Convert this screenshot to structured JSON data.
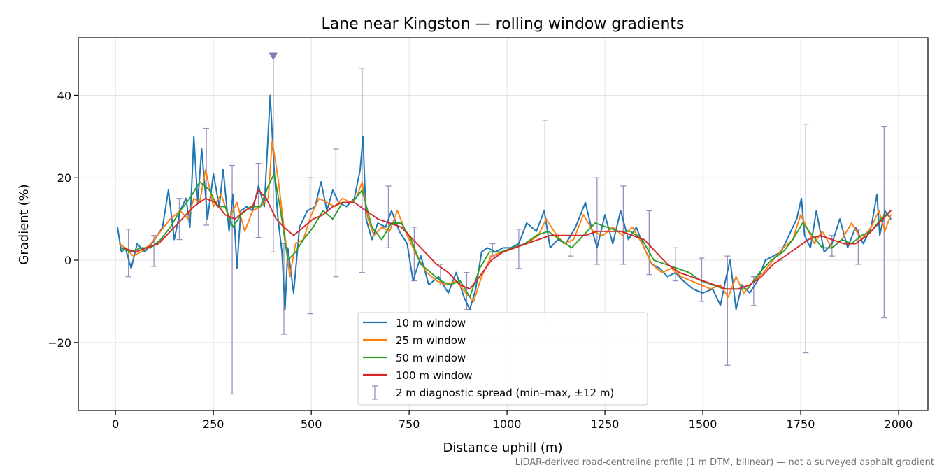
{
  "chart_data": {
    "type": "line",
    "title": "Lane near Kingston — rolling window gradients",
    "xlabel": "Distance uphill (m)",
    "ylabel": "Gradient (%)",
    "footnote": "LiDAR-derived road-centreline profile (1 m DTM, bilinear) — not a surveyed asphalt gradient",
    "xlim": [
      -95,
      2075
    ],
    "ylim": [
      -36.5,
      54
    ],
    "xticks": [
      0,
      250,
      500,
      750,
      1000,
      1250,
      1500,
      1750,
      2000
    ],
    "yticks": [
      -20,
      0,
      20,
      40
    ],
    "ytick_labels": [
      "−20",
      "0",
      "20",
      "40"
    ],
    "grid": true,
    "legend_position": "lower center",
    "series": [
      {
        "name": "10 m window",
        "color": "#1f77b4",
        "x": [
          5,
          15,
          25,
          40,
          55,
          75,
          100,
          120,
          135,
          150,
          165,
          180,
          190,
          200,
          210,
          220,
          235,
          250,
          265,
          275,
          290,
          300,
          310,
          320,
          335,
          350,
          365,
          380,
          395,
          405,
          415,
          425,
          433,
          440,
          455,
          470,
          490,
          510,
          525,
          540,
          555,
          570,
          590,
          610,
          625,
          632,
          640,
          655,
          670,
          690,
          705,
          725,
          745,
          760,
          780,
          800,
          825,
          850,
          870,
          890,
          905,
          920,
          935,
          950,
          970,
          990,
          1010,
          1030,
          1050,
          1075,
          1095,
          1110,
          1130,
          1150,
          1175,
          1200,
          1215,
          1230,
          1250,
          1270,
          1290,
          1310,
          1330,
          1350,
          1370,
          1390,
          1410,
          1430,
          1450,
          1475,
          1500,
          1525,
          1545,
          1560,
          1570,
          1585,
          1600,
          1620,
          1640,
          1660,
          1680,
          1700,
          1720,
          1740,
          1752,
          1760,
          1775,
          1790,
          1810,
          1830,
          1850,
          1870,
          1890,
          1910,
          1930,
          1945,
          1952,
          1965,
          1980
        ],
        "y": [
          8,
          2,
          3,
          -2,
          4,
          2,
          5,
          8,
          17,
          5,
          12,
          15,
          8,
          30,
          14,
          27,
          10,
          21,
          13,
          22,
          7,
          16,
          -2,
          12,
          13,
          12,
          18,
          13,
          40,
          22,
          10,
          2,
          -12,
          3,
          -8,
          8,
          12,
          13,
          19,
          12,
          17,
          14,
          13,
          15,
          22,
          30,
          10,
          5,
          9,
          8,
          12,
          7,
          4,
          -5,
          1,
          -6,
          -4,
          -8,
          -3,
          -9,
          -12,
          -7,
          2,
          3,
          2,
          3,
          3,
          4,
          9,
          7,
          12,
          3,
          5,
          4,
          8,
          14,
          8,
          3,
          11,
          4,
          12,
          5,
          8,
          3,
          -1,
          -2,
          -4,
          -3,
          -5,
          -7,
          -8,
          -7,
          -11,
          -4,
          0,
          -12,
          -6,
          -8,
          -5,
          0,
          1,
          2,
          6,
          10,
          15,
          6,
          3,
          12,
          2,
          4,
          10,
          3,
          8,
          4,
          8,
          16,
          6,
          12,
          10
        ]
      },
      {
        "name": "25 m window",
        "color": "#ff7f0e",
        "x": [
          10,
          25,
          45,
          65,
          90,
          115,
          140,
          165,
          185,
          200,
          215,
          230,
          250,
          270,
          290,
          310,
          330,
          350,
          370,
          390,
          400,
          415,
          430,
          445,
          460,
          480,
          500,
          520,
          540,
          560,
          580,
          600,
          615,
          630,
          645,
          660,
          680,
          700,
          720,
          745,
          770,
          795,
          820,
          845,
          870,
          895,
          915,
          935,
          960,
          990,
          1020,
          1050,
          1080,
          1100,
          1120,
          1145,
          1170,
          1195,
          1220,
          1245,
          1270,
          1295,
          1320,
          1345,
          1370,
          1395,
          1420,
          1445,
          1470,
          1495,
          1520,
          1545,
          1565,
          1585,
          1605,
          1630,
          1655,
          1680,
          1705,
          1730,
          1750,
          1765,
          1785,
          1805,
          1830,
          1855,
          1880,
          1905,
          1930,
          1950,
          1965,
          1980
        ],
        "y": [
          4,
          3,
          1,
          2,
          4,
          7,
          10,
          12,
          10,
          15,
          14,
          22,
          13,
          16,
          10,
          14,
          7,
          12,
          13,
          15,
          29,
          20,
          8,
          -4,
          4,
          5,
          11,
          15,
          14,
          13,
          15,
          14,
          15,
          19,
          10,
          6,
          8,
          7,
          12,
          6,
          1,
          -3,
          -5,
          -6,
          -5,
          -8,
          -10,
          -4,
          1,
          2,
          3,
          4,
          6,
          10,
          7,
          4,
          5,
          11,
          7,
          6,
          8,
          6,
          8,
          4,
          -1,
          -3,
          -2,
          -4,
          -5,
          -6,
          -7,
          -6,
          -9,
          -4,
          -8,
          -5,
          -3,
          0,
          3,
          5,
          11,
          8,
          4,
          7,
          3,
          5,
          9,
          5,
          8,
          12,
          7,
          11
        ]
      },
      {
        "name": "50 m window",
        "color": "#2ca02c",
        "x": [
          15,
          40,
          65,
          90,
          115,
          140,
          165,
          190,
          215,
          240,
          260,
          280,
          300,
          320,
          345,
          370,
          390,
          405,
          420,
          440,
          460,
          480,
          505,
          530,
          555,
          580,
          605,
          630,
          655,
          680,
          705,
          730,
          755,
          780,
          805,
          830,
          855,
          880,
          905,
          930,
          955,
          985,
          1015,
          1045,
          1075,
          1105,
          1135,
          1165,
          1195,
          1225,
          1255,
          1285,
          1315,
          1345,
          1375,
          1405,
          1435,
          1465,
          1495,
          1525,
          1555,
          1585,
          1615,
          1645,
          1675,
          1705,
          1730,
          1755,
          1780,
          1805,
          1830,
          1855,
          1880,
          1905,
          1930,
          1955,
          1980
        ],
        "y": [
          3,
          2,
          3,
          3,
          5,
          8,
          12,
          15,
          19,
          17,
          13,
          13,
          8,
          11,
          13,
          13,
          18,
          21,
          13,
          0,
          2,
          5,
          8,
          12,
          10,
          14,
          14,
          17,
          8,
          5,
          9,
          9,
          5,
          -1,
          -3,
          -5,
          -6,
          -5,
          -9,
          -2,
          2,
          2,
          3,
          4,
          6,
          7,
          5,
          3,
          6,
          9,
          8,
          7,
          7,
          5,
          0,
          -1,
          -2,
          -3,
          -5,
          -6,
          -7,
          -7,
          -7,
          -3,
          0,
          2,
          5,
          9,
          6,
          3,
          3,
          5,
          4,
          6,
          7,
          10,
          12
        ]
      },
      {
        "name": "100 m window",
        "color": "#d62728",
        "x": [
          20,
          50,
          80,
          110,
          140,
          170,
          200,
          230,
          255,
          280,
          305,
          330,
          350,
          365,
          385,
          410,
          430,
          455,
          480,
          505,
          530,
          555,
          580,
          610,
          640,
          670,
          700,
          730,
          760,
          790,
          820,
          850,
          880,
          905,
          930,
          960,
          990,
          1020,
          1050,
          1080,
          1110,
          1140,
          1170,
          1200,
          1230,
          1260,
          1290,
          1320,
          1350,
          1380,
          1410,
          1440,
          1470,
          1500,
          1530,
          1560,
          1590,
          1620,
          1650,
          1680,
          1710,
          1740,
          1770,
          1800,
          1830,
          1860,
          1890,
          1920,
          1950,
          1980
        ],
        "y": [
          3,
          2,
          3,
          4,
          7,
          10,
          13,
          15,
          14,
          11,
          10,
          12,
          13,
          17,
          15,
          10,
          8,
          6,
          8,
          10,
          11,
          13,
          14,
          14,
          12,
          10,
          9,
          8,
          5,
          2,
          -1,
          -3,
          -6,
          -7,
          -4,
          0,
          2,
          3,
          4,
          5,
          6,
          6,
          6,
          6,
          7,
          7,
          7,
          6,
          5,
          2,
          -1,
          -3,
          -4,
          -5,
          -6,
          -7,
          -7,
          -6,
          -4,
          -1,
          1,
          3,
          5,
          6,
          5,
          4,
          4,
          6,
          9,
          12
        ]
      }
    ],
    "diagnostic_spread": {
      "name": "2 m diagnostic spread (min–max, ±12 m)",
      "color": "#9b8fbd",
      "points": [
        {
          "x": 33,
          "min": -4,
          "max": 7.5
        },
        {
          "x": 98,
          "min": -1.5,
          "max": 6
        },
        {
          "x": 163,
          "min": 5,
          "max": 15
        },
        {
          "x": 232,
          "min": 8.5,
          "max": 32
        },
        {
          "x": 298,
          "min": -32.5,
          "max": 23
        },
        {
          "x": 365,
          "min": 5.5,
          "max": 23.5
        },
        {
          "x": 403,
          "min": 2,
          "max": 49.5
        },
        {
          "x": 430,
          "min": -18,
          "max": 4
        },
        {
          "x": 497,
          "min": -13,
          "max": 20
        },
        {
          "x": 563,
          "min": -4,
          "max": 27
        },
        {
          "x": 630,
          "min": -3,
          "max": 46.5
        },
        {
          "x": 697,
          "min": 3,
          "max": 18
        },
        {
          "x": 763,
          "min": -5,
          "max": 8
        },
        {
          "x": 830,
          "min": -6,
          "max": -1
        },
        {
          "x": 897,
          "min": -12,
          "max": -3
        },
        {
          "x": 963,
          "min": 1,
          "max": 4
        },
        {
          "x": 1030,
          "min": -2,
          "max": 7.5
        },
        {
          "x": 1097,
          "min": -15.5,
          "max": 34
        },
        {
          "x": 1163,
          "min": 1,
          "max": 6
        },
        {
          "x": 1230,
          "min": -1,
          "max": 20
        },
        {
          "x": 1297,
          "min": -1,
          "max": 18
        },
        {
          "x": 1363,
          "min": -3.5,
          "max": 12
        },
        {
          "x": 1430,
          "min": -5,
          "max": 3
        },
        {
          "x": 1497,
          "min": -10,
          "max": 0.5
        },
        {
          "x": 1563,
          "min": -25.5,
          "max": 1
        },
        {
          "x": 1630,
          "min": -11,
          "max": -4
        },
        {
          "x": 1697,
          "min": 0,
          "max": 3
        },
        {
          "x": 1763,
          "min": -22.5,
          "max": 33
        },
        {
          "x": 1830,
          "min": 1,
          "max": 6
        },
        {
          "x": 1897,
          "min": -1,
          "max": 7.5
        },
        {
          "x": 1963,
          "min": -14,
          "max": 32.5
        }
      ]
    },
    "clipped_marker": {
      "x": 403,
      "y": 49.5,
      "color": "#8878b0"
    }
  }
}
